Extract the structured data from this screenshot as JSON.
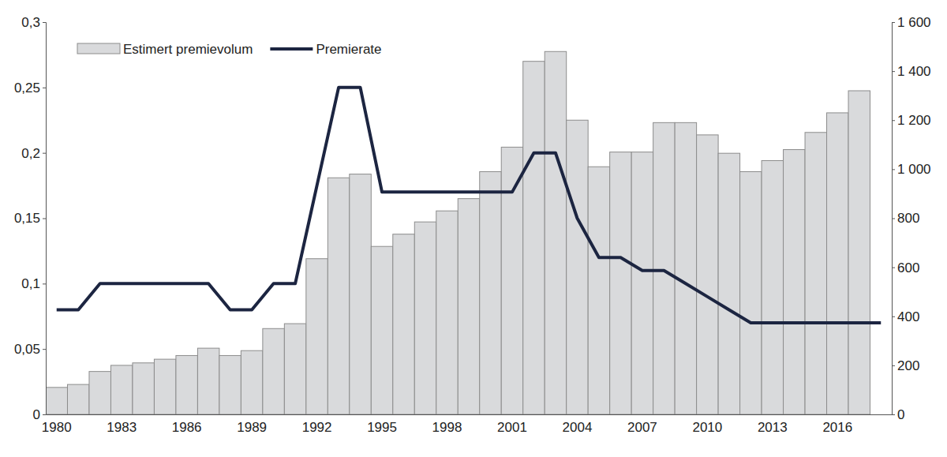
{
  "chart_data": {
    "type": "bar",
    "categories": [
      "1980",
      null,
      null,
      "1983",
      null,
      null,
      "1986",
      null,
      null,
      "1989",
      null,
      null,
      "1992",
      null,
      null,
      "1995",
      null,
      null,
      "1998",
      null,
      null,
      "2001",
      null,
      null,
      "2004",
      null,
      null,
      "2007",
      null,
      null,
      "2010",
      null,
      null,
      "2013",
      null,
      null,
      "2016",
      null,
      null
    ],
    "series": [
      {
        "name": "Estimert premievolum",
        "type": "bar",
        "axis": "y2",
        "color": "#d9dadc",
        "values": [
          110,
          122,
          175,
          200,
          210,
          225,
          240,
          270,
          240,
          260,
          350,
          370,
          635,
          965,
          980,
          685,
          735,
          785,
          830,
          880,
          990,
          1090,
          1440,
          1480,
          1200,
          1010,
          1070,
          1070,
          1190,
          1190,
          1140,
          1065,
          990,
          1035,
          1080,
          1150,
          1230,
          1320,
          null
        ]
      },
      {
        "name": "Premierate",
        "type": "line",
        "color": "#1c2541",
        "values": [
          0.08,
          0.08,
          0.1,
          0.1,
          0.1,
          0.1,
          0.1,
          0.1,
          0.08,
          0.08,
          0.1,
          0.1,
          0.175,
          0.25,
          0.25,
          0.17,
          0.17,
          0.17,
          0.17,
          0.17,
          0.17,
          0.17,
          0.2,
          0.2,
          0.15,
          0.12,
          0.12,
          0.11,
          0.11,
          0.1,
          0.09,
          0.08,
          0.07,
          0.07,
          0.07,
          0.07,
          0.07,
          0.07,
          0.07
        ]
      }
    ],
    "ylim": [
      0,
      0.3
    ],
    "yticks": [
      0,
      {
        "value": 0.05,
        "label": "0,05"
      },
      {
        "value": 0.1,
        "label": "0,1"
      },
      {
        "value": 0.15,
        "label": "0,15"
      },
      {
        "value": 0.2,
        "label": "0,2"
      },
      {
        "value": 0.25,
        "label": "0,25"
      },
      {
        "value": 0.3,
        "label": "0,3"
      }
    ],
    "y2lim": [
      0,
      1600
    ],
    "y2ticks": [
      0,
      200,
      400,
      600,
      800,
      {
        "value": 1000,
        "label": "1 000"
      },
      {
        "value": 1200,
        "label": "1 200"
      },
      {
        "value": 1400,
        "label": "1 400"
      },
      {
        "value": 1600,
        "label": "1 600"
      }
    ],
    "legend": "top-left",
    "grid": false
  }
}
